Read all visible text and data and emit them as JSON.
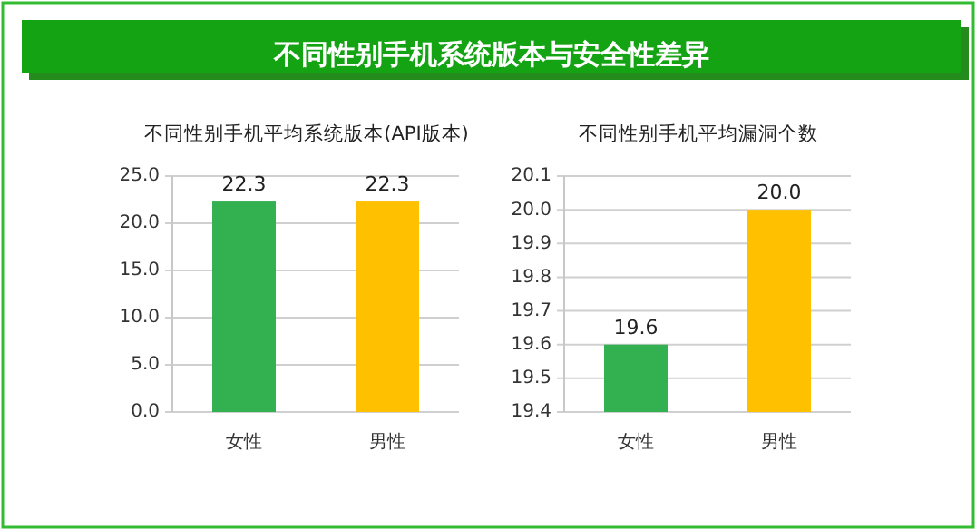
{
  "chart_data": [
    {
      "type": "bar",
      "title": "不同性别手机系统版本与安全性差异",
      "subtitle": "不同性别手机平均系统版本(API版本)",
      "categories": [
        "女性",
        "男性"
      ],
      "values": [
        22.3,
        22.3
      ],
      "colors": [
        "#33b050",
        "#ffc000"
      ],
      "ylim": [
        0,
        25
      ],
      "yticks": [
        {
          "value": 0,
          "label": "0.0"
        },
        {
          "value": 5,
          "label": "5.0"
        },
        {
          "value": 10,
          "label": "10.0"
        },
        {
          "value": 15,
          "label": "15.0"
        },
        {
          "value": 20,
          "label": "20.0"
        },
        {
          "value": 25,
          "label": "25.0"
        }
      ],
      "grid": "y",
      "data_labels": true
    },
    {
      "type": "bar",
      "title": "不同性别手机平均漏洞个数",
      "categories": [
        "女性",
        "男性"
      ],
      "values": [
        19.6,
        20.0
      ],
      "colors": [
        "#33b050",
        "#ffc000"
      ],
      "value_labels": [
        "19.6",
        "20.0"
      ],
      "ylim": [
        19.4,
        20.1
      ],
      "yticks": [
        19.4,
        19.5,
        19.6,
        19.7,
        19.8,
        19.9,
        {
          "value": 20.0,
          "label": "20.0"
        },
        20.1
      ],
      "grid": "y"
    }
  ]
}
